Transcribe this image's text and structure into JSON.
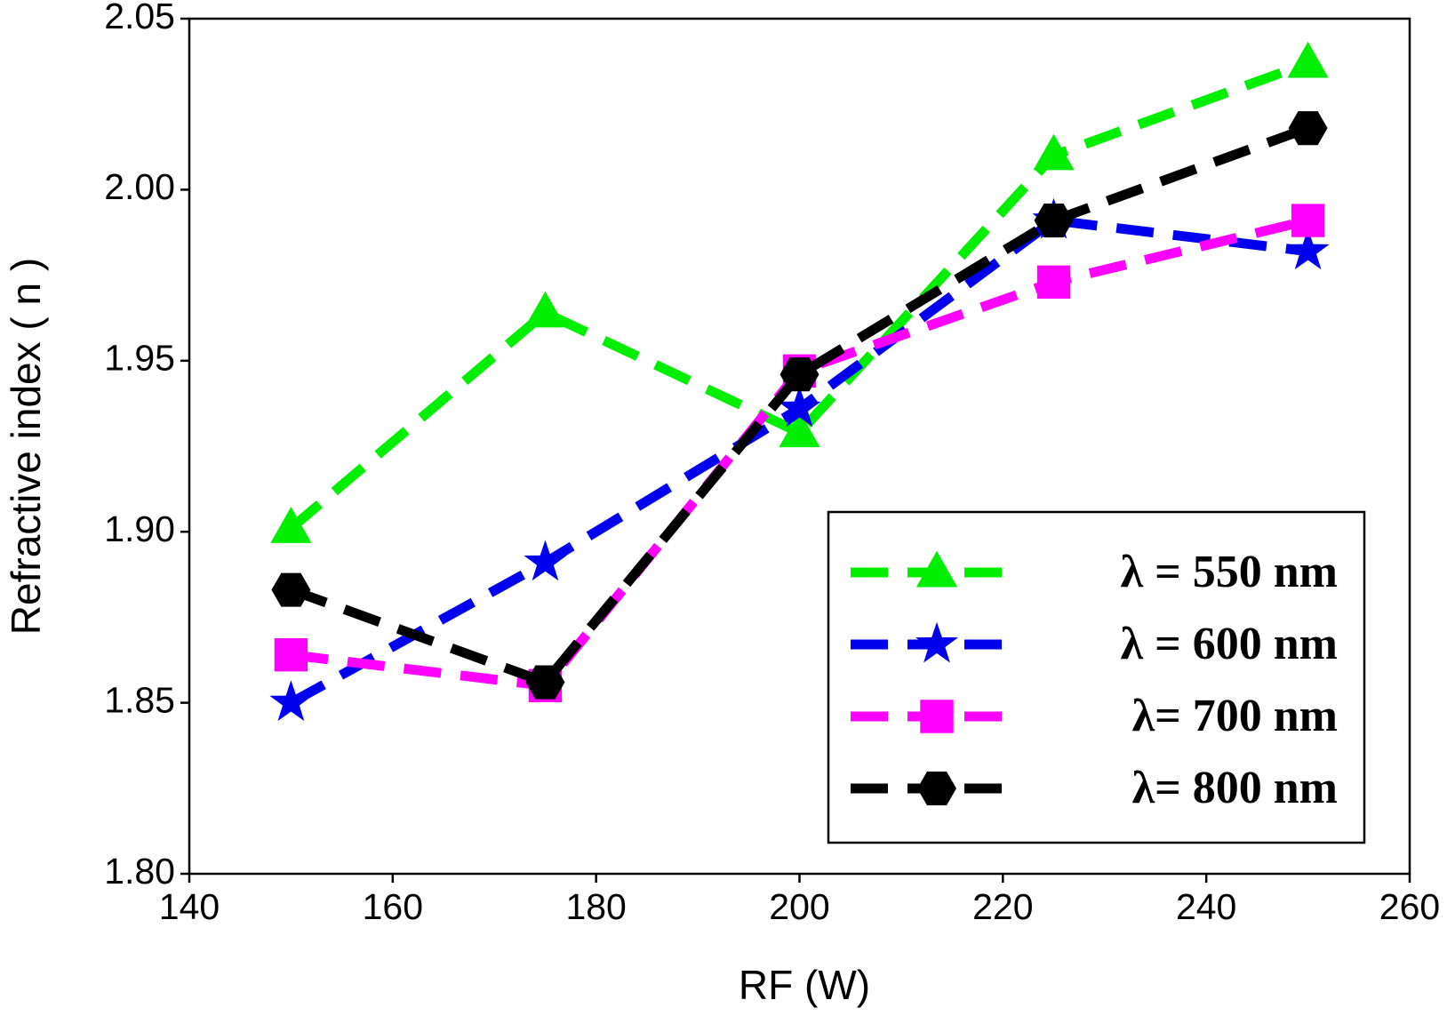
{
  "chart_data": {
    "type": "line",
    "x_label": "RF (W)",
    "y_label": "Refractive index ( n )",
    "x": [
      150,
      175,
      200,
      225,
      250
    ],
    "series": [
      {
        "name": "λ = 550 nm",
        "color": "#00ee00",
        "marker": "triangle",
        "values": [
          1.901,
          1.964,
          1.929,
          2.01,
          2.037
        ]
      },
      {
        "name": "λ = 600 nm",
        "color": "#0000ee",
        "marker": "star",
        "values": [
          1.85,
          1.891,
          1.936,
          1.991,
          1.982
        ]
      },
      {
        "name": " λ= 700 nm",
        "color": "#ff00ff",
        "marker": "square",
        "values": [
          1.864,
          1.855,
          1.947,
          1.973,
          1.991
        ]
      },
      {
        "name": "λ= 800 nm",
        "color": "#000000",
        "marker": "hexagon",
        "values": [
          1.883,
          1.856,
          1.946,
          1.991,
          2.018
        ]
      }
    ],
    "xlim": [
      140,
      260
    ],
    "xticks": [
      140,
      160,
      180,
      200,
      220,
      240,
      260
    ],
    "ylim": [
      1.8,
      2.05
    ],
    "yticks": [
      {
        "value": 1.8,
        "label": "1.80"
      },
      1.85,
      {
        "value": 1.9,
        "label": "1.90"
      },
      1.95,
      {
        "value": 2.0,
        "label": "2.00"
      },
      2.05
    ],
    "legend": "lower-right"
  }
}
